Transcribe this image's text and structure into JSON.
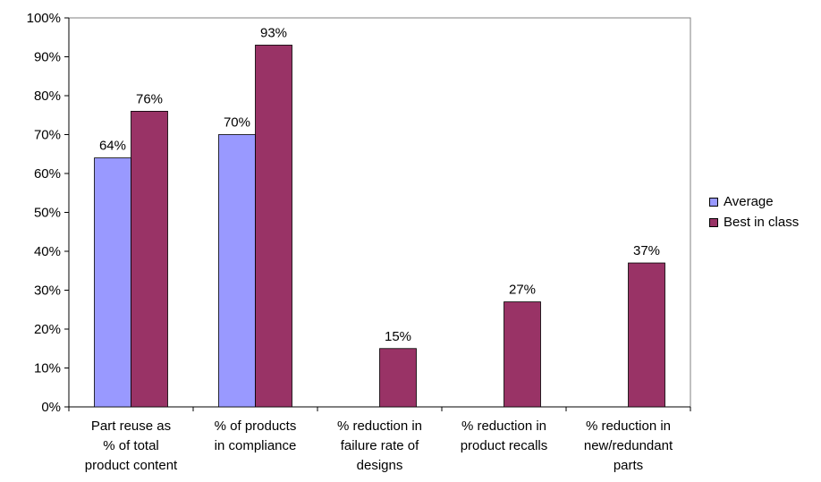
{
  "chart_data": {
    "type": "bar",
    "categories": [
      [
        "Part reuse as",
        "% of total",
        "product content"
      ],
      [
        "% of products",
        "in compliance"
      ],
      [
        "% reduction in",
        "failure rate of",
        "designs"
      ],
      [
        "% reduction in",
        "product recalls"
      ],
      [
        "% reduction in",
        "new/redundant",
        "parts"
      ]
    ],
    "series": [
      {
        "name": "Average",
        "color": "#9999ff",
        "values": [
          64,
          70,
          null,
          null,
          null
        ]
      },
      {
        "name": "Best in class",
        "color": "#993366",
        "values": [
          76,
          93,
          15,
          27,
          37
        ]
      }
    ],
    "y_ticks": [
      "0%",
      "10%",
      "20%",
      "30%",
      "40%",
      "50%",
      "60%",
      "70%",
      "80%",
      "90%",
      "100%"
    ],
    "ylim": [
      0,
      100
    ],
    "legend_position": "right"
  }
}
